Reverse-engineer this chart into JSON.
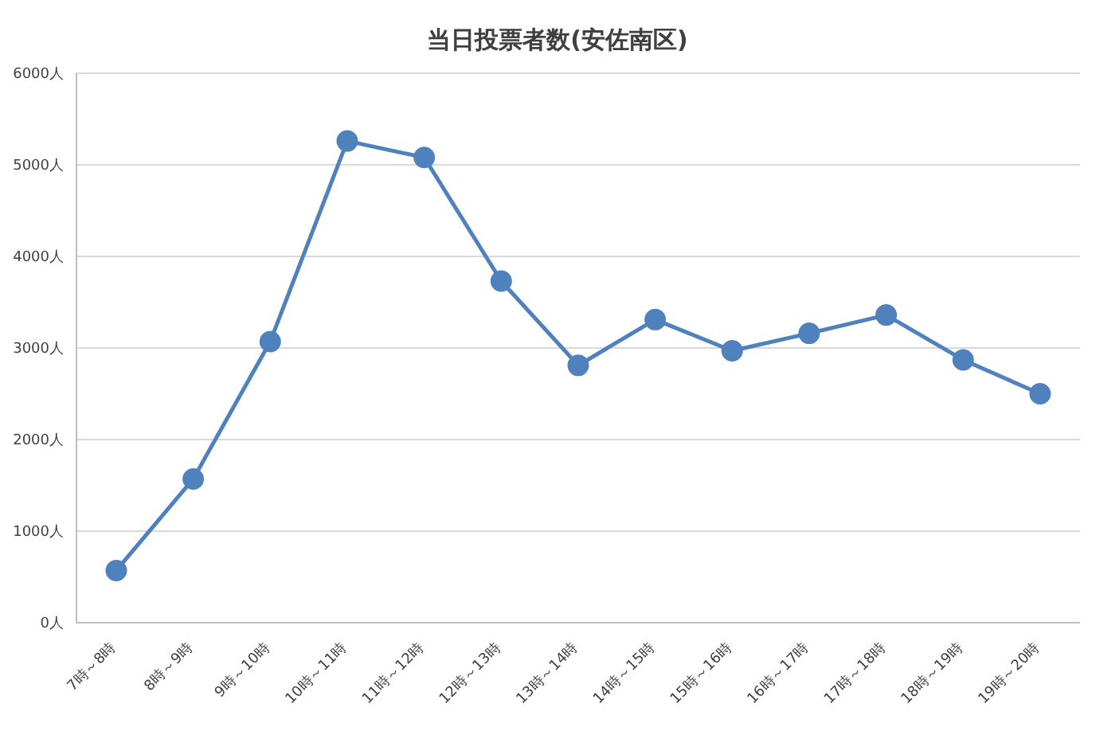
{
  "chart_data": {
    "type": "line",
    "title": "当日投票者数(安佐南区)",
    "categories": [
      "7時～8時",
      "8時～9時",
      "9時～10時",
      "10時～11時",
      "11時～12時",
      "12時～13時",
      "13時～14時",
      "14時～15時",
      "15時～16時",
      "16時～17時",
      "17時～18時",
      "18時～19時",
      "19時～20時"
    ],
    "series": [
      {
        "color": "#4f81bd",
        "values": [
          570,
          1570,
          3070,
          5260,
          5080,
          3730,
          2810,
          3310,
          2970,
          3160,
          3360,
          2870,
          2500
        ]
      }
    ],
    "ylim": [
      0,
      6000
    ],
    "yticks": [
      {
        "value": 0,
        "label": "0人"
      },
      {
        "value": 1000,
        "label": "1000人"
      },
      {
        "value": 2000,
        "label": "2000人"
      },
      {
        "value": 3000,
        "label": "3000人"
      },
      {
        "value": 4000,
        "label": "4000人"
      },
      {
        "value": 5000,
        "label": "5000人"
      },
      {
        "value": 6000,
        "label": "6000人"
      }
    ],
    "grid": "y",
    "marker": "circle",
    "line_style": "solid"
  }
}
